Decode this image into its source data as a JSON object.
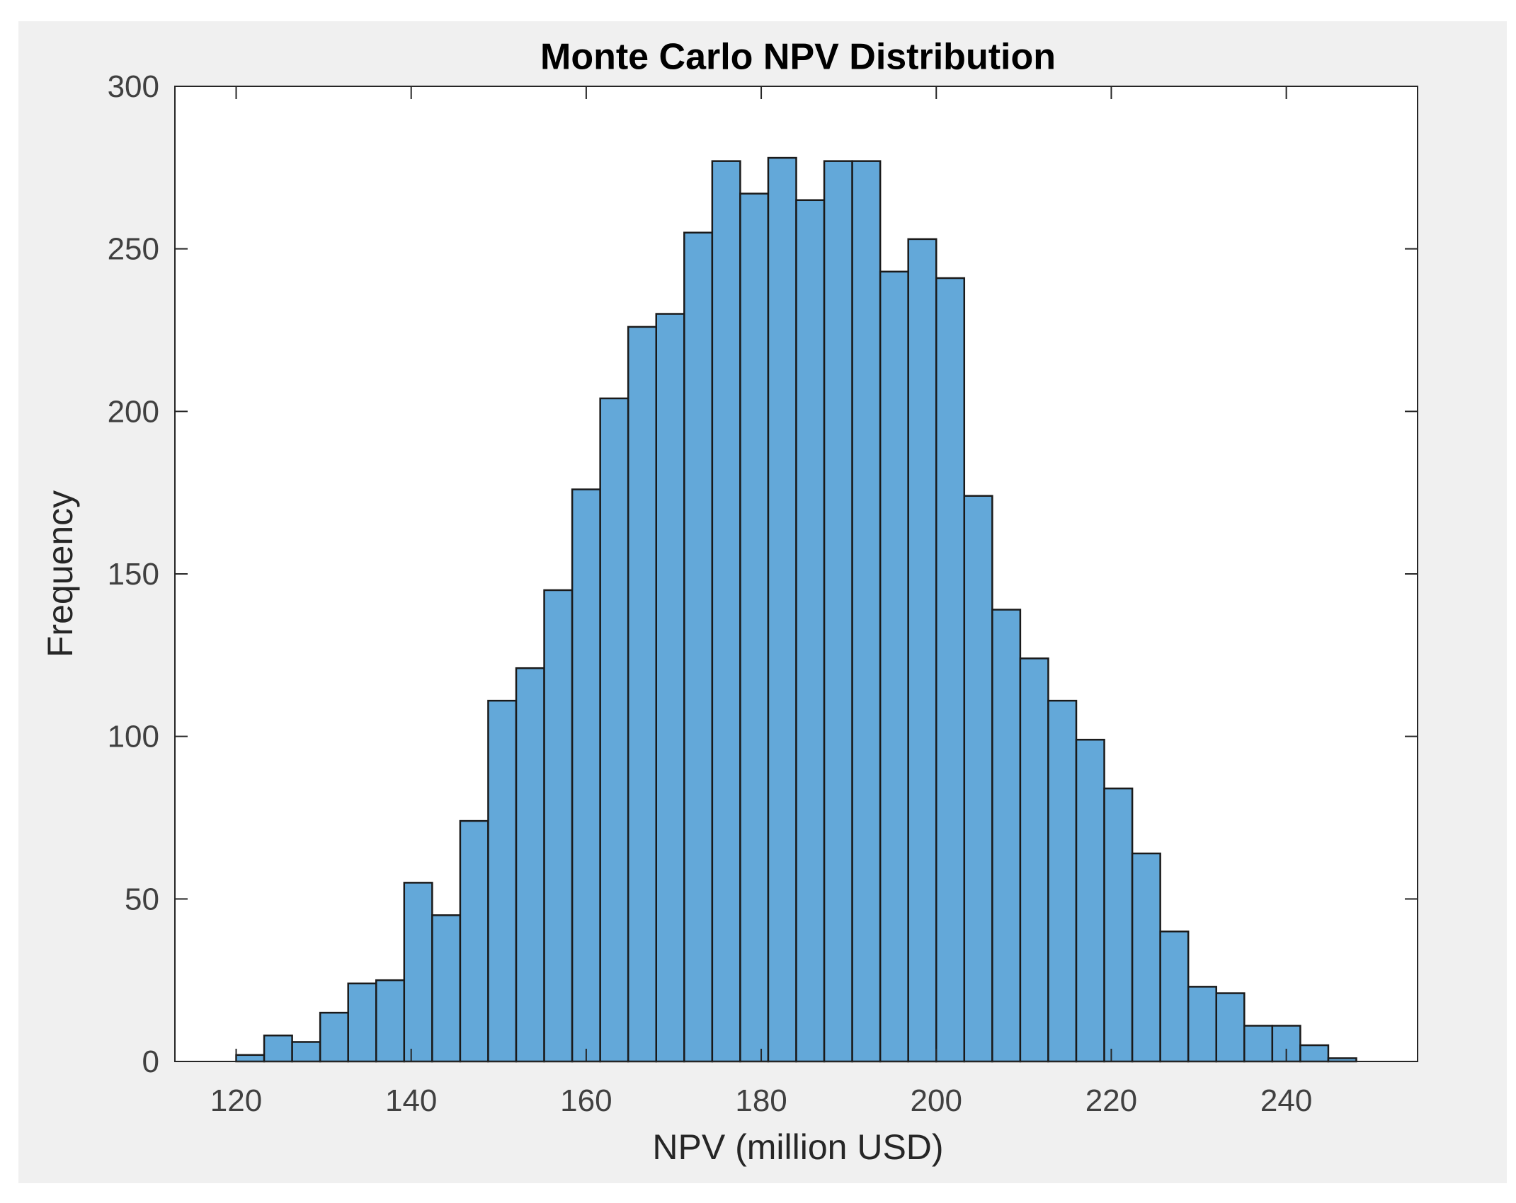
{
  "chart_data": {
    "type": "bar",
    "title": "Monte Carlo NPV Distribution",
    "xlabel": "NPV (million USD)",
    "ylabel": "Frequency",
    "xlim": [
      113,
      255
    ],
    "ylim": [
      0,
      300
    ],
    "xticks": [
      120,
      140,
      160,
      180,
      200,
      220,
      240
    ],
    "yticks": [
      0,
      50,
      100,
      150,
      200,
      250,
      300
    ],
    "bin_start": 120,
    "bin_width": 3.2,
    "values": [
      2,
      8,
      6,
      15,
      24,
      25,
      55,
      45,
      74,
      111,
      121,
      145,
      176,
      204,
      226,
      230,
      255,
      277,
      267,
      278,
      265,
      277,
      277,
      243,
      253,
      241,
      174,
      139,
      124,
      111,
      99,
      84,
      64,
      40,
      23,
      21,
      11,
      11,
      5,
      1
    ],
    "colors": {
      "bar_fill": "#63a8d9",
      "bar_edge": "#1a1a1a",
      "axes_background": "#ffffff",
      "figure_background": "#f0f0f0"
    },
    "grid": false,
    "box": true
  }
}
